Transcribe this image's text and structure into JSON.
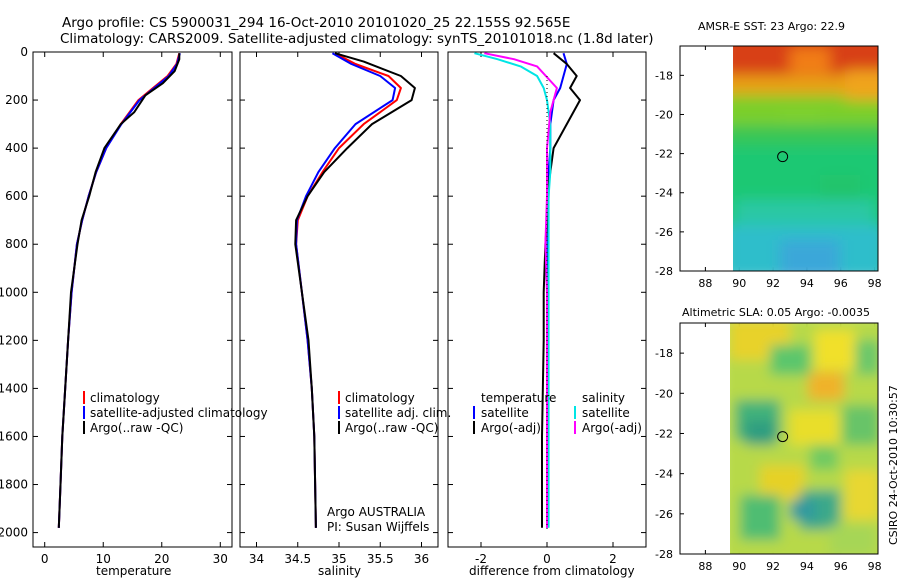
{
  "title": {
    "line1": "Argo profile: CS 5900031_294 16-Oct-2010 20101020_25 22.155S 92.565E",
    "line2": "Climatology: CARS2009. Satellite-adjusted climatology: synTS_20101018.nc (1.8d later)"
  },
  "colors": {
    "climatology": "#ff0000",
    "satellite": "#0000ff",
    "argo": "#000000",
    "sal_satellite": "#00e5e5",
    "sal_argo": "#ff00ff"
  },
  "credit": "CSIRO 24-Oct-2010 10:30:57",
  "chart_data": [
    {
      "type": "line",
      "xlabel": "temperature",
      "xlim": [
        -2,
        32
      ],
      "ylim": [
        2060,
        0
      ],
      "xticks": [
        "0",
        "10",
        "20",
        "30"
      ],
      "yticks": [
        "0",
        "200",
        "400",
        "600",
        "800",
        "1000",
        "1200",
        "1400",
        "1600",
        "1800",
        "2000"
      ],
      "legend": [
        "climatology",
        "satellite-adjusted climatology",
        "Argo(..raw -QC)"
      ],
      "series": [
        {
          "name": "climatology",
          "color": "#ff0000",
          "x": [
            23.0,
            22.5,
            21.0,
            18.5,
            16.0,
            13.0,
            10.5,
            8.8,
            7.5,
            6.4,
            5.5,
            4.6,
            4.0,
            3.5,
            3.0,
            2.7,
            2.4
          ],
          "y": [
            5,
            50,
            100,
            150,
            200,
            300,
            400,
            500,
            600,
            700,
            800,
            1000,
            1200,
            1400,
            1600,
            1800,
            1980
          ]
        },
        {
          "name": "satellite-adjusted climatology",
          "color": "#0000ff",
          "x": [
            23.1,
            22.6,
            21.2,
            18.7,
            16.2,
            13.1,
            10.5,
            8.8,
            7.5,
            6.4,
            5.5,
            4.6,
            4.0,
            3.5,
            3.0,
            2.7,
            2.4
          ],
          "y": [
            5,
            50,
            100,
            150,
            200,
            300,
            400,
            500,
            600,
            700,
            800,
            1000,
            1200,
            1400,
            1600,
            1800,
            1980
          ]
        },
        {
          "name": "Argo(..raw -QC)",
          "color": "#000000",
          "x": [
            23.0,
            23.0,
            22.2,
            20.2,
            17.2,
            15.3,
            13.0,
            10.2,
            8.7,
            7.6,
            6.3,
            5.6,
            4.5,
            4.0,
            3.5,
            3.0,
            2.7,
            2.4
          ],
          "y": [
            5,
            30,
            80,
            130,
            180,
            250,
            300,
            400,
            500,
            600,
            700,
            800,
            1000,
            1200,
            1400,
            1600,
            1800,
            1980
          ]
        }
      ]
    },
    {
      "type": "line",
      "xlabel": "salinity",
      "xlim": [
        33.8,
        36.2
      ],
      "ylim": [
        2060,
        0
      ],
      "xticks": [
        "34",
        "34.5",
        "35",
        "35.5",
        "36"
      ],
      "legend": [
        "climatology",
        "satellite adj. clim.",
        "Argo(..raw -QC)"
      ],
      "annotation": [
        "Argo AUSTRALIA",
        "PI: Susan Wijffels"
      ],
      "series": [
        {
          "name": "climatology",
          "color": "#ff0000",
          "x": [
            34.95,
            35.2,
            35.6,
            35.75,
            35.7,
            35.3,
            35.0,
            34.8,
            34.62,
            34.5,
            34.48,
            34.55,
            34.62,
            34.67,
            34.7,
            34.72
          ],
          "y": [
            5,
            50,
            100,
            150,
            200,
            300,
            400,
            500,
            600,
            700,
            800,
            1000,
            1200,
            1400,
            1600,
            1980
          ]
        },
        {
          "name": "satellite adj. clim.",
          "color": "#0000ff",
          "x": [
            34.92,
            35.15,
            35.5,
            35.68,
            35.65,
            35.2,
            34.95,
            34.75,
            34.6,
            34.49,
            34.48,
            34.55,
            34.62,
            34.67,
            34.7,
            34.72
          ],
          "y": [
            5,
            50,
            100,
            150,
            200,
            300,
            400,
            500,
            600,
            700,
            800,
            1000,
            1200,
            1400,
            1600,
            1980
          ]
        },
        {
          "name": "Argo(..raw -QC)",
          "color": "#000000",
          "x": [
            34.95,
            35.3,
            35.75,
            35.92,
            35.88,
            35.4,
            35.1,
            34.82,
            34.62,
            34.48,
            34.47,
            34.55,
            34.63,
            34.67,
            34.7,
            34.72
          ],
          "y": [
            5,
            40,
            100,
            150,
            200,
            300,
            400,
            500,
            600,
            700,
            800,
            1000,
            1200,
            1400,
            1600,
            1980
          ]
        }
      ]
    },
    {
      "type": "line",
      "xlabel": "difference from climatology",
      "xlim": [
        -3,
        3
      ],
      "ylim": [
        2060,
        0
      ],
      "xticks": [
        "-2",
        "0",
        "2"
      ],
      "legend": [
        "temperature",
        "satellite",
        "Argo(-adj)",
        "salinity",
        "satellite",
        "Argo(-adj)"
      ],
      "series": [
        {
          "name": "temperature satellite",
          "color": "#0000ff",
          "x": [
            0.5,
            0.6,
            0.5,
            0.4,
            0.2,
            0.1,
            0.1,
            0.05,
            0.05,
            0.02,
            0.02,
            0.0,
            0.0,
            0.0,
            0.0
          ],
          "y": [
            5,
            50,
            100,
            150,
            200,
            300,
            400,
            500,
            600,
            700,
            800,
            1000,
            1200,
            1600,
            1980
          ]
        },
        {
          "name": "temperature Argo(-adj)",
          "color": "#000000",
          "x": [
            0.2,
            0.6,
            0.9,
            0.7,
            1.0,
            0.6,
            0.2,
            0.1,
            0.0,
            0.0,
            -0.05,
            -0.1,
            -0.1,
            -0.15,
            -0.15
          ],
          "y": [
            5,
            50,
            100,
            150,
            200,
            300,
            400,
            500,
            600,
            700,
            800,
            1000,
            1200,
            1600,
            1980
          ]
        },
        {
          "name": "salinity satellite",
          "color": "#00e5e5",
          "x": [
            -2.2,
            -1.5,
            -0.8,
            -0.3,
            -0.1,
            0.0,
            0.1,
            0.1,
            0.1,
            0.05,
            0.05,
            0.05,
            0.05,
            0.05,
            0.05
          ],
          "y": [
            5,
            30,
            60,
            100,
            150,
            200,
            300,
            400,
            500,
            600,
            700,
            800,
            1000,
            1600,
            1980
          ]
        },
        {
          "name": "salinity Argo(-adj)",
          "color": "#ff00ff",
          "x": [
            -1.9,
            -1.0,
            -0.3,
            0.3,
            0.1,
            0.0,
            0.0,
            -0.05,
            0.0,
            0.0,
            0.0
          ],
          "y": [
            5,
            30,
            60,
            150,
            250,
            400,
            600,
            800,
            1000,
            1600,
            1980
          ]
        }
      ]
    },
    {
      "type": "heatmap",
      "title": "AMSR-E SST: 23 Argo: 22.9",
      "xlim": [
        86.5,
        98.2
      ],
      "ylim": [
        -28,
        -16.5
      ],
      "xticks": [
        "88",
        "90",
        "92",
        "94",
        "96",
        "98"
      ],
      "yticks": [
        "-18",
        "-20",
        "-22",
        "-24",
        "-26",
        "-28"
      ],
      "data_x_start": 90,
      "marker": {
        "x": 92.565,
        "y": -22.155
      }
    },
    {
      "type": "heatmap",
      "title": "Altimetric SLA: 0.05 Argo: -0.0035",
      "xlim": [
        86.5,
        98.2
      ],
      "ylim": [
        -28,
        -16.5
      ],
      "xticks": [
        "88",
        "90",
        "92",
        "94",
        "96",
        "98"
      ],
      "yticks": [
        "-18",
        "-20",
        "-22",
        "-24",
        "-26",
        "-28"
      ],
      "data_x_start": 90,
      "marker": {
        "x": 92.565,
        "y": -22.155
      }
    }
  ]
}
